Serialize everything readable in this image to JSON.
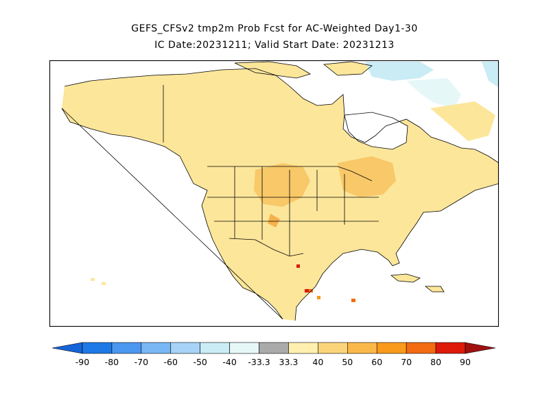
{
  "header": {
    "title_line1": "GEFS_CFSv2 tmp2m Prob Fcst for AC-Weighted Day1-30",
    "title_line2": "IC Date:20231211; Valid Start Date: 20231213"
  },
  "map": {
    "region": "North America",
    "variable": "tmp2m",
    "dominant_category": "above-normal 40-50%"
  },
  "colorbar": {
    "labels": [
      "-90",
      "-80",
      "-70",
      "-60",
      "-50",
      "-40",
      "-33.3",
      "33.3",
      "40",
      "50",
      "60",
      "70",
      "80",
      "90"
    ],
    "colors": {
      "lt_minus90": "#1565d8",
      "m90_m80": "#1e78e6",
      "m80_m70": "#4a97ef",
      "m70_m60": "#79b6f4",
      "m60_m50": "#a6d3f7",
      "m50_m40": "#c9ecf5",
      "m40_m33": "#e6f7f8",
      "near_normal": "#aaaaaa",
      "p33_p40": "#fff0b0",
      "p40_p50": "#fbd47a",
      "p50_p60": "#fbb84a",
      "p60_p70": "#f99a1c",
      "p70_p80": "#f26b10",
      "p80_p90": "#dd1a0a",
      "gt_p90": "#a01010"
    }
  }
}
